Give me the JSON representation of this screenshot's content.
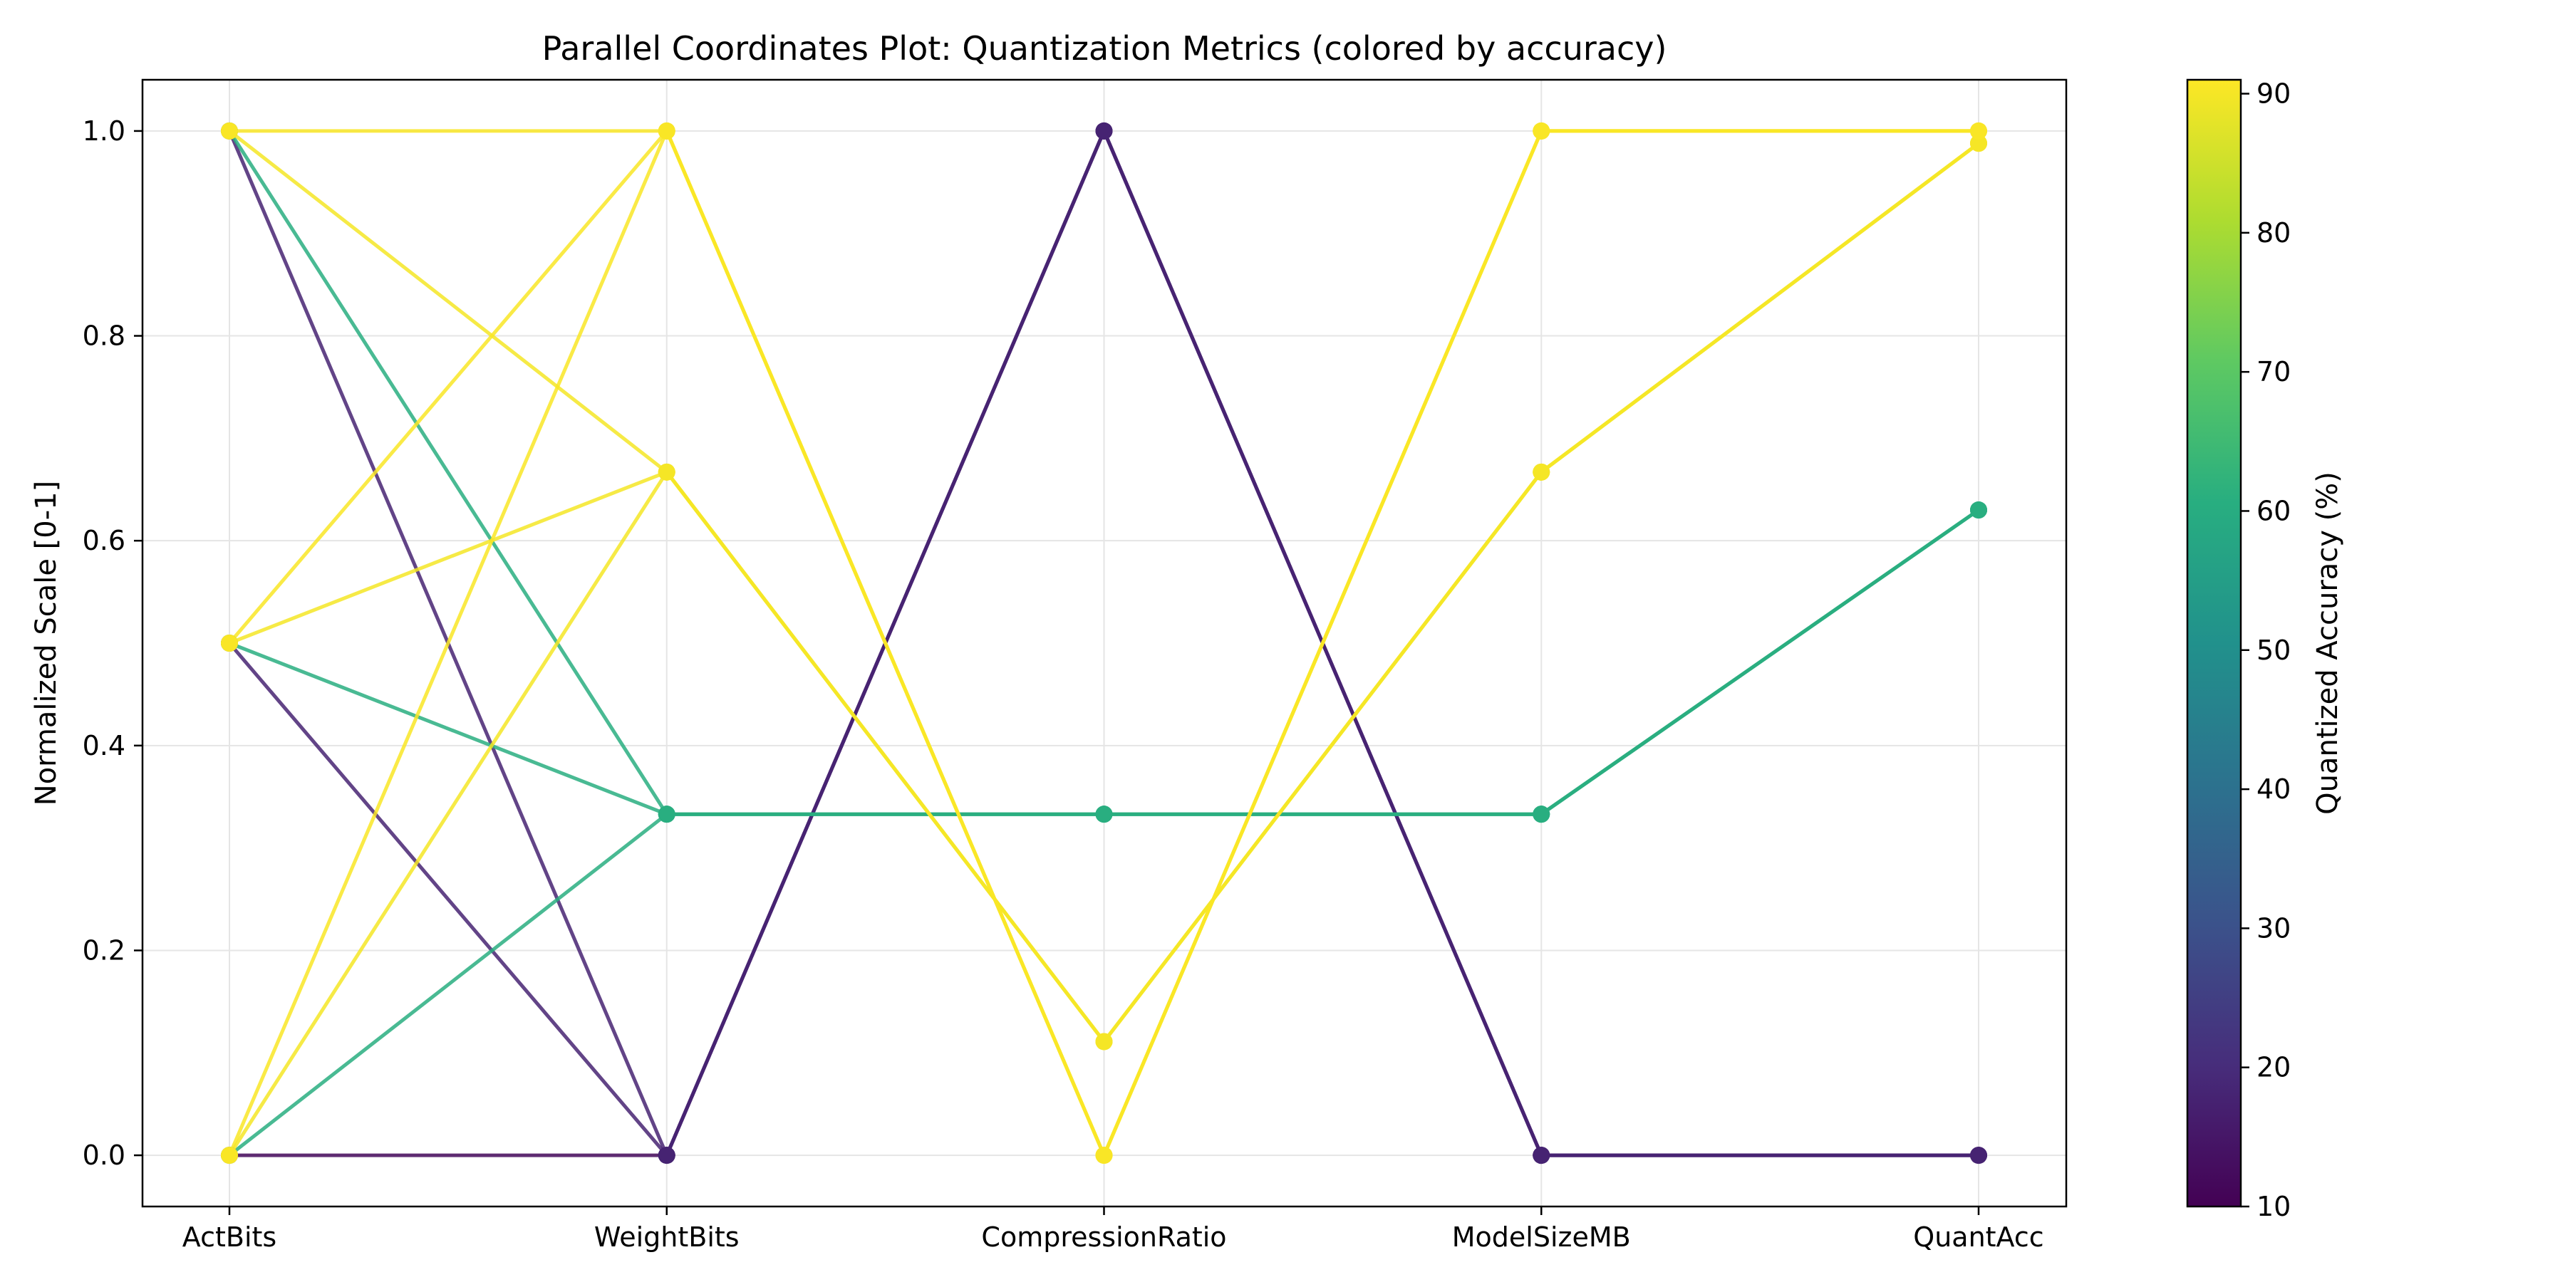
{
  "chart_data": {
    "type": "line",
    "subtype": "parallel-coordinates",
    "title": "Parallel Coordinates Plot: Quantization Metrics (colored by accuracy)",
    "xlabel": "",
    "ylabel": "Normalized Scale [0-1]",
    "ylim": [
      -0.05,
      1.05
    ],
    "grid": true,
    "categories": [
      "ActBits",
      "WeightBits",
      "CompressionRatio",
      "ModelSizeMB",
      "QuantAcc"
    ],
    "y_ticks": [
      "0.0",
      "0.2",
      "0.4",
      "0.6",
      "0.8",
      "1.0"
    ],
    "colorbar": {
      "label": "Quantized Accuracy (%)",
      "range": [
        10,
        91
      ],
      "ticks": [
        "10",
        "20",
        "30",
        "40",
        "50",
        "60",
        "70",
        "80",
        "90"
      ],
      "colormap": "viridis"
    },
    "series": [
      {
        "accuracy": 90.5,
        "values": [
          1.0,
          1.0,
          0.0,
          1.0,
          1.0
        ]
      },
      {
        "accuracy": 90.0,
        "values": [
          1.0,
          0.667,
          0.111,
          0.667,
          0.988
        ]
      },
      {
        "accuracy": 90.5,
        "values": [
          0.5,
          1.0,
          0.0,
          1.0,
          1.0
        ]
      },
      {
        "accuracy": 90.0,
        "values": [
          0.5,
          0.667,
          0.111,
          0.667,
          0.988
        ]
      },
      {
        "accuracy": 90.5,
        "values": [
          0.0,
          1.0,
          0.0,
          1.0,
          1.0
        ]
      },
      {
        "accuracy": 90.0,
        "values": [
          0.0,
          0.667,
          0.111,
          0.667,
          0.988
        ]
      },
      {
        "accuracy": 61.0,
        "values": [
          1.0,
          0.333,
          0.333,
          0.333,
          0.63
        ]
      },
      {
        "accuracy": 61.0,
        "values": [
          0.5,
          0.333,
          0.333,
          0.333,
          0.63
        ]
      },
      {
        "accuracy": 61.0,
        "values": [
          0.0,
          0.333,
          0.333,
          0.333,
          0.63
        ]
      },
      {
        "accuracy": 18.0,
        "values": [
          1.0,
          0.0,
          1.0,
          0.0,
          0.0
        ]
      },
      {
        "accuracy": 18.0,
        "values": [
          0.5,
          0.0,
          1.0,
          0.0,
          0.0
        ]
      },
      {
        "accuracy": 12.0,
        "values": [
          0.0,
          0.0,
          1.0,
          0.0,
          0.0
        ]
      }
    ]
  }
}
